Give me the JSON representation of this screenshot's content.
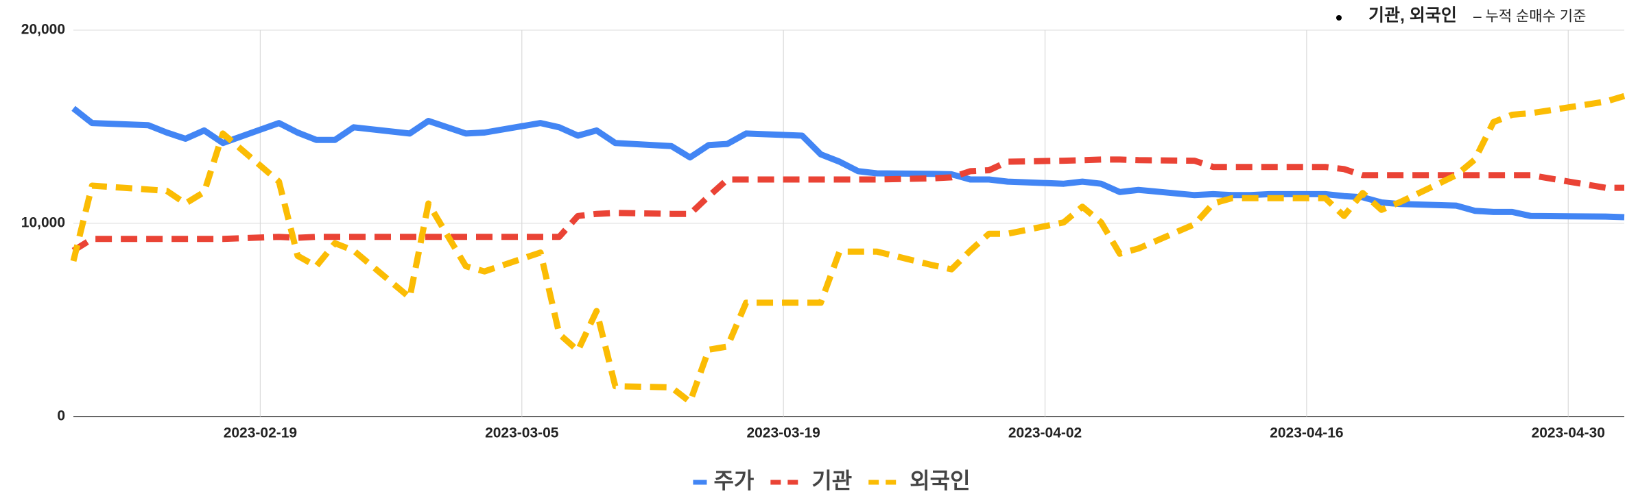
{
  "chart_data": {
    "type": "line",
    "annotation": [
      "기관, 외국인",
      "– 누적 순매수 기준"
    ],
    "x": [
      "2023-02-09",
      "2023-02-10",
      "2023-02-13",
      "2023-02-14",
      "2023-02-15",
      "2023-02-16",
      "2023-02-17",
      "2023-02-20",
      "2023-02-21",
      "2023-02-22",
      "2023-02-23",
      "2023-02-24",
      "2023-02-27",
      "2023-02-28",
      "2023-03-02",
      "2023-03-03",
      "2023-03-06",
      "2023-03-07",
      "2023-03-08",
      "2023-03-09",
      "2023-03-10",
      "2023-03-13",
      "2023-03-14",
      "2023-03-15",
      "2023-03-16",
      "2023-03-17",
      "2023-03-20",
      "2023-03-21",
      "2023-03-22",
      "2023-03-23",
      "2023-03-24",
      "2023-03-27",
      "2023-03-28",
      "2023-03-29",
      "2023-03-30",
      "2023-03-31",
      "2023-04-03",
      "2023-04-04",
      "2023-04-05",
      "2023-04-06",
      "2023-04-07",
      "2023-04-10",
      "2023-04-11",
      "2023-04-12",
      "2023-04-13",
      "2023-04-14",
      "2023-04-17",
      "2023-04-18",
      "2023-04-19",
      "2023-04-20",
      "2023-04-21",
      "2023-04-24",
      "2023-04-25",
      "2023-04-26",
      "2023-04-27",
      "2023-04-28",
      "2023-05-02",
      "2023-05-03"
    ],
    "series": [
      {
        "name": "주가",
        "color": "#4285f4",
        "line_style": "solid",
        "values": [
          15950,
          15190,
          15080,
          14700,
          14380,
          14810,
          14160,
          15190,
          14700,
          14320,
          14320,
          14970,
          14650,
          15300,
          14650,
          14700,
          15190,
          14970,
          14540,
          14810,
          14160,
          14000,
          13410,
          14050,
          14110,
          14650,
          14540,
          13570,
          13190,
          12700,
          12590,
          12560,
          12540,
          12270,
          12270,
          12160,
          12050,
          12160,
          12050,
          11620,
          11730,
          11460,
          11510,
          11460,
          11460,
          11510,
          11510,
          11410,
          11350,
          11080,
          11000,
          10920,
          10650,
          10590,
          10590,
          10380,
          10350,
          10320
        ]
      },
      {
        "name": "기관",
        "color": "#ea4335",
        "line_style": "dashed",
        "values": [
          8590,
          9190,
          9190,
          9190,
          9190,
          9190,
          9190,
          9300,
          9250,
          9300,
          9300,
          9300,
          9300,
          9300,
          9300,
          9300,
          9300,
          9300,
          10380,
          10490,
          10540,
          10490,
          10490,
          11400,
          12270,
          12270,
          12270,
          12270,
          12270,
          12270,
          12270,
          12330,
          12380,
          12700,
          12750,
          13190,
          13240,
          13270,
          13300,
          13300,
          13270,
          13240,
          12920,
          12920,
          12920,
          12920,
          12920,
          12810,
          12490,
          12490,
          12490,
          12490,
          12490,
          12490,
          12490,
          12490,
          11840,
          11840
        ]
      },
      {
        "name": "외국인",
        "color": "#fbbc04",
        "line_style": "dashed",
        "values": [
          8050,
          11950,
          11750,
          11680,
          11030,
          11620,
          14650,
          12160,
          8320,
          7780,
          8970,
          8590,
          6160,
          11030,
          7780,
          7510,
          8490,
          4270,
          3410,
          5460,
          1570,
          1510,
          760,
          3460,
          3620,
          5890,
          5890,
          5890,
          8540,
          8540,
          8540,
          7830,
          7620,
          8590,
          9460,
          9460,
          10050,
          10860,
          10050,
          8430,
          8700,
          9950,
          11030,
          11300,
          11300,
          11300,
          11300,
          10380,
          11570,
          10700,
          11100,
          12490,
          13300,
          15240,
          15620,
          15700,
          16300,
          16590
        ]
      }
    ],
    "xlim": [
      "2023-02-09",
      "2023-05-03"
    ],
    "xticks": [
      "2023-02-19",
      "2023-03-05",
      "2023-03-19",
      "2023-04-02",
      "2023-04-16",
      "2023-04-30"
    ],
    "ylim": [
      0,
      20000
    ],
    "yticks": [
      0,
      {
        "value": 10000,
        "label": "10,000"
      },
      {
        "value": 20000,
        "label": "20,000"
      }
    ],
    "grid": true,
    "legend": "bottom"
  }
}
